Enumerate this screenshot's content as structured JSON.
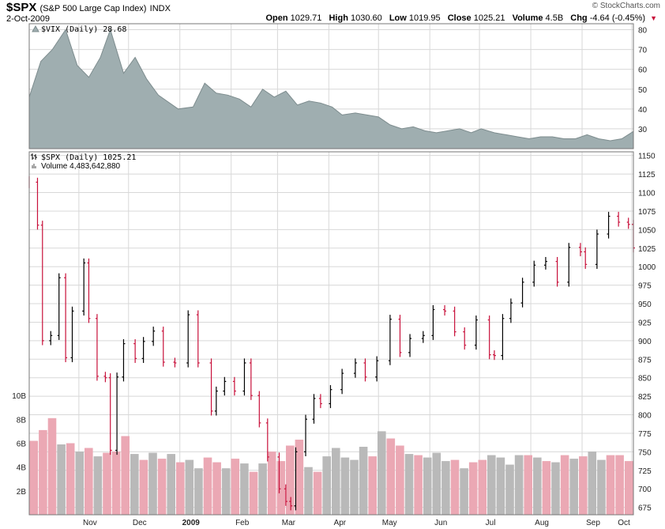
{
  "header": {
    "symbol": "$SPX",
    "description": "(S&P 500 Large Cap Index)",
    "exchange": "INDX",
    "date": "2-Oct-2009",
    "brand": "© StockCharts.com",
    "open_label": "Open",
    "open": "1029.71",
    "high_label": "High",
    "high": "1030.60",
    "low_label": "Low",
    "low": "1019.95",
    "close_label": "Close",
    "close": "1025.21",
    "volume_label": "Volume",
    "volume": "4.5B",
    "chg_label": "Chg",
    "chg": "-4.64 (-0.45%)",
    "chg_icon": "down-triangle-icon"
  },
  "colors": {
    "vix_fill": "#9faeb0",
    "vix_line": "#7d8c8e",
    "up": "#000000",
    "down": "#c8103a",
    "vol_up": "#b9b9b9",
    "vol_down": "#eba8b4",
    "grid": "#d8d8d8"
  },
  "chart_data": [
    {
      "type": "area",
      "legend": "$VIX (Daily) 28.68",
      "x_range": [
        "2008-10-02",
        "2009-10-02"
      ],
      "ylim": [
        20,
        83
      ],
      "y_ticks": [
        30,
        40,
        50,
        60,
        70,
        80
      ],
      "x": [
        "2008-10-02",
        "2008-10-09",
        "2008-10-16",
        "2008-10-24",
        "2008-10-31",
        "2008-11-07",
        "2008-11-14",
        "2008-11-20",
        "2008-11-28",
        "2008-12-05",
        "2008-12-12",
        "2008-12-19",
        "2008-12-31",
        "2009-01-09",
        "2009-01-16",
        "2009-01-23",
        "2009-01-30",
        "2009-02-06",
        "2009-02-13",
        "2009-02-20",
        "2009-02-27",
        "2009-03-06",
        "2009-03-13",
        "2009-03-20",
        "2009-03-27",
        "2009-04-03",
        "2009-04-09",
        "2009-04-17",
        "2009-04-24",
        "2009-05-01",
        "2009-05-08",
        "2009-05-15",
        "2009-05-22",
        "2009-05-29",
        "2009-06-05",
        "2009-06-12",
        "2009-06-19",
        "2009-06-26",
        "2009-07-02",
        "2009-07-10",
        "2009-07-17",
        "2009-07-24",
        "2009-07-31",
        "2009-08-07",
        "2009-08-14",
        "2009-08-21",
        "2009-08-28",
        "2009-09-04",
        "2009-09-11",
        "2009-09-18",
        "2009-09-25",
        "2009-10-02"
      ],
      "values": [
        46,
        64,
        70,
        80,
        62,
        56,
        66,
        80,
        58,
        66,
        55,
        47,
        40,
        41,
        53,
        48,
        47,
        45,
        41,
        50,
        46,
        49,
        42,
        44,
        43,
        41,
        37,
        38,
        37,
        36,
        32,
        30,
        31,
        29,
        28,
        29,
        30,
        28,
        30,
        28,
        27,
        26,
        25,
        26,
        26,
        25,
        25,
        27,
        25,
        24,
        25,
        28.68
      ],
      "grid": true
    },
    {
      "type": "line",
      "legend": "$SPX (Daily) 1025.21",
      "volume_legend": "Volume 4,483,642,880",
      "x_tick_labels": [
        "Nov",
        "Dec",
        "2009",
        "Feb",
        "Mar",
        "Apr",
        "May",
        "Jun",
        "Jul",
        "Aug",
        "Sep",
        "Oct"
      ],
      "ylim": [
        665,
        1155
      ],
      "y_ticks": [
        675,
        700,
        725,
        750,
        775,
        800,
        825,
        850,
        875,
        900,
        925,
        950,
        975,
        1000,
        1025,
        1050,
        1075,
        1100,
        1125,
        1150
      ],
      "series": [
        {
          "x": [
            "2008-10-02",
            "2008-10-07",
            "2008-10-10",
            "2008-10-15",
            "2008-10-20",
            "2008-10-24",
            "2008-10-28",
            "2008-11-04",
            "2008-11-07",
            "2008-11-12",
            "2008-11-17",
            "2008-11-20",
            "2008-11-24",
            "2008-11-28",
            "2008-12-05",
            "2008-12-10",
            "2008-12-16",
            "2008-12-22",
            "2008-12-29",
            "2009-01-06",
            "2009-01-12",
            "2009-01-20",
            "2009-01-23",
            "2009-01-28",
            "2009-02-03",
            "2009-02-09",
            "2009-02-13",
            "2009-02-18",
            "2009-02-23",
            "2009-03-02",
            "2009-03-06",
            "2009-03-09",
            "2009-03-12",
            "2009-03-18",
            "2009-03-23",
            "2009-03-27",
            "2009-04-02",
            "2009-04-09",
            "2009-04-17",
            "2009-04-23",
            "2009-04-30",
            "2009-05-08",
            "2009-05-14",
            "2009-05-20",
            "2009-05-28",
            "2009-06-03",
            "2009-06-10",
            "2009-06-16",
            "2009-06-22",
            "2009-06-29",
            "2009-07-07",
            "2009-07-10",
            "2009-07-15",
            "2009-07-20",
            "2009-07-27",
            "2009-08-03",
            "2009-08-10",
            "2009-08-17",
            "2009-08-24",
            "2009-08-31",
            "2009-09-03",
            "2009-09-10",
            "2009-09-17",
            "2009-09-23",
            "2009-09-29",
            "2009-10-02"
          ],
          "values": [
            1114,
            1056,
            900,
            907,
            985,
            877,
            940,
            1005,
            930,
            852,
            850,
            752,
            851,
            896,
            876,
            899,
            913,
            871,
            870,
            935,
            870,
            805,
            832,
            845,
            832,
            870,
            826,
            789,
            743,
            700,
            683,
            677,
            750,
            794,
            822,
            815,
            834,
            856,
            870,
            851,
            873,
            929,
            884,
            903,
            907,
            942,
            940,
            912,
            894,
            928,
            881,
            880,
            930,
            951,
            979,
            1002,
            1007,
            979,
            1026,
            1020,
            1003,
            1044,
            1068,
            1060,
            1057,
            1025.21
          ]
        }
      ],
      "volume": {
        "ylim": [
          0,
          12
        ],
        "y_ticks": [
          2,
          4,
          6,
          8,
          10
        ],
        "y_tick_labels": [
          "2B",
          "4B",
          "6B",
          "8B",
          "10B"
        ],
        "values": [
          6.2,
          7.1,
          8.1,
          5.9,
          6.0,
          5.3,
          5.6,
          4.9,
          5.2,
          5.3,
          6.6,
          5.1,
          4.6,
          5.2,
          4.7,
          5.1,
          4.4,
          4.6,
          3.9,
          4.8,
          4.4,
          3.9,
          4.7,
          4.3,
          3.6,
          4.3,
          5.3,
          4.5,
          5.8,
          6.3,
          4.0,
          3.6,
          4.9,
          5.6,
          4.8,
          4.6,
          5.7,
          4.9,
          7.0,
          6.4,
          5.8,
          5.1,
          5.0,
          4.8,
          5.2,
          4.5,
          4.6,
          3.9,
          4.4,
          4.6,
          5.0,
          4.8,
          4.2,
          5.0,
          5.0,
          4.8,
          4.5,
          4.4,
          5.0,
          4.7,
          4.9,
          5.3,
          4.6,
          5.0,
          5.0,
          4.5
        ],
        "down_flags": [
          true,
          true,
          true,
          false,
          true,
          false,
          true,
          false,
          true,
          true,
          true,
          false,
          true,
          false,
          true,
          false,
          true,
          false,
          false,
          true,
          true,
          false,
          true,
          false,
          true,
          false,
          true,
          true,
          true,
          true,
          false,
          true,
          false,
          false,
          false,
          false,
          false,
          true,
          false,
          true,
          true,
          false,
          true,
          false,
          false,
          false,
          true,
          false,
          true,
          true,
          false,
          false,
          false,
          false,
          true,
          false,
          true,
          false,
          true,
          false,
          true,
          false,
          false,
          true,
          true,
          true
        ]
      }
    }
  ]
}
